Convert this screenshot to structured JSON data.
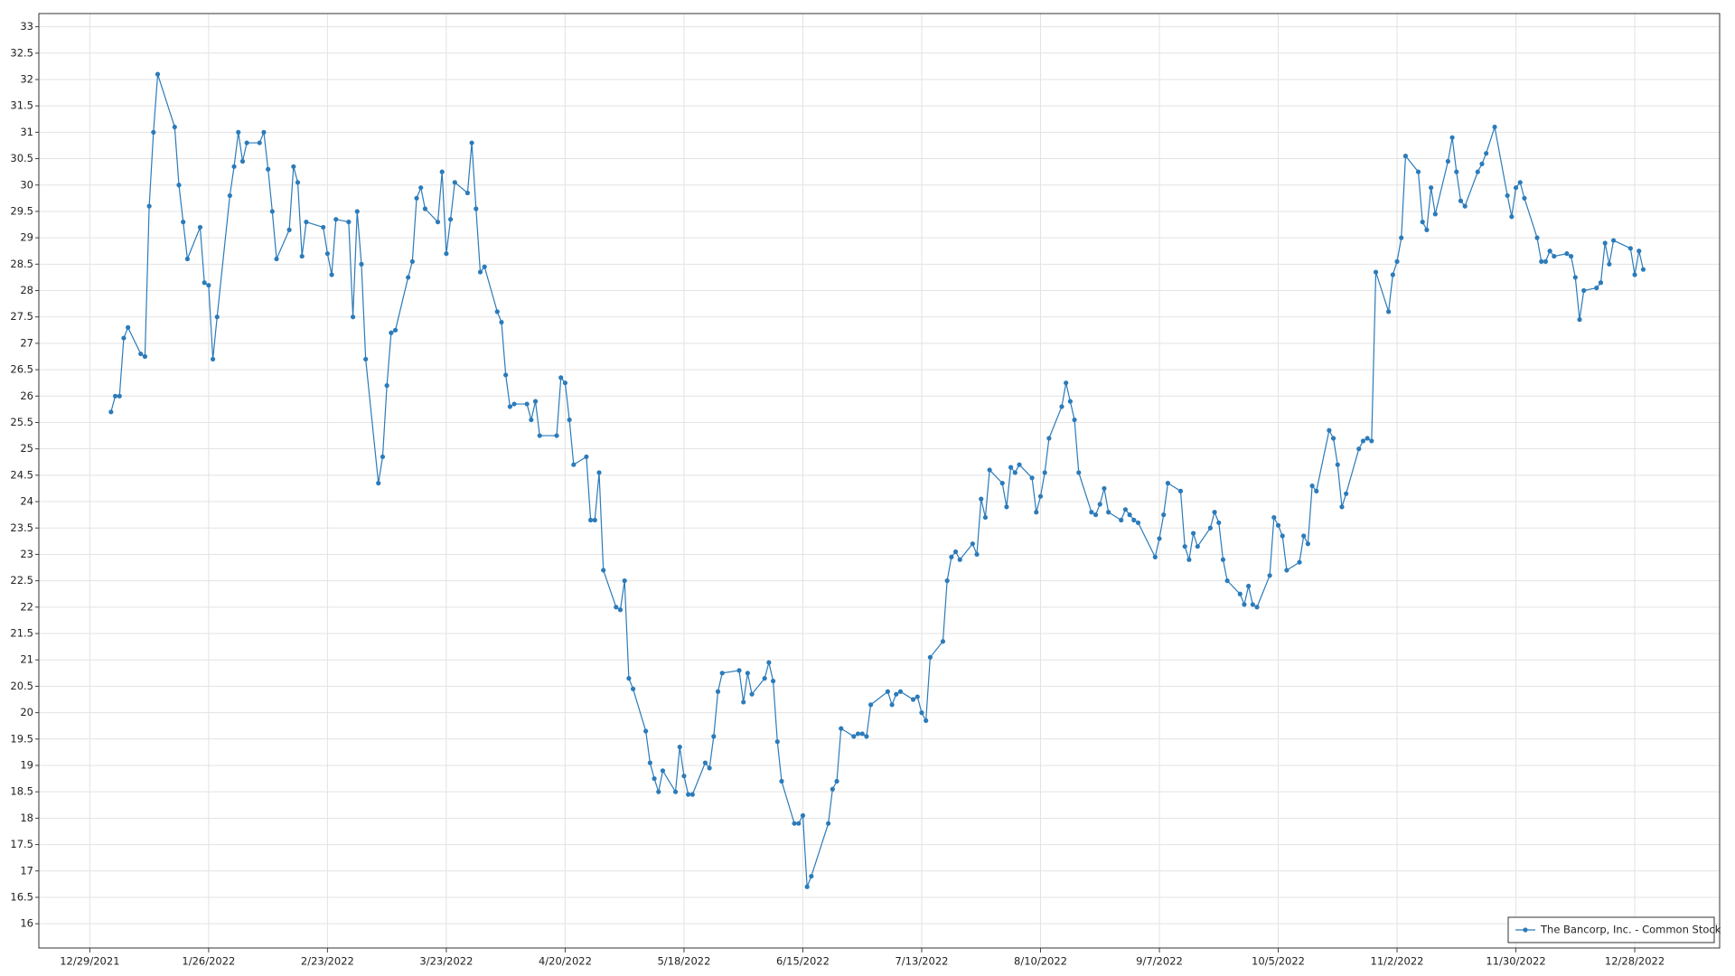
{
  "chart_data": {
    "type": "line",
    "grid": true,
    "legend": "bottom-right",
    "markers": true,
    "xlim": [
      "12/17/2021",
      "1/17/2023"
    ],
    "xticks": [
      "12/29/2021",
      "1/26/2022",
      "2/23/2022",
      "3/23/2022",
      "4/20/2022",
      "5/18/2022",
      "6/15/2022",
      "7/13/2022",
      "8/10/2022",
      "9/7/2022",
      "10/5/2022",
      "11/2/2022",
      "11/30/2022",
      "12/28/2022"
    ],
    "ylim": [
      15.54,
      33.25
    ],
    "yticks": [
      16,
      16.5,
      17,
      17.5,
      18,
      18.5,
      19,
      19.5,
      20,
      20.5,
      21,
      21.5,
      22,
      22.5,
      23,
      23.5,
      24,
      24.5,
      25,
      25.5,
      26,
      26.5,
      27,
      27.5,
      28,
      28.5,
      29,
      29.5,
      30,
      30.5,
      31,
      31.5,
      32,
      32.5,
      33
    ],
    "x": [
      "1/3/2022",
      "1/4/2022",
      "1/5/2022",
      "1/6/2022",
      "1/7/2022",
      "1/10/2022",
      "1/11/2022",
      "1/12/2022",
      "1/13/2022",
      "1/14/2022",
      "1/18/2022",
      "1/19/2022",
      "1/20/2022",
      "1/21/2022",
      "1/24/2022",
      "1/25/2022",
      "1/26/2022",
      "1/27/2022",
      "1/28/2022",
      "1/31/2022",
      "2/1/2022",
      "2/2/2022",
      "2/3/2022",
      "2/4/2022",
      "2/7/2022",
      "2/8/2022",
      "2/9/2022",
      "2/10/2022",
      "2/11/2022",
      "2/14/2022",
      "2/15/2022",
      "2/16/2022",
      "2/17/2022",
      "2/18/2022",
      "2/22/2022",
      "2/23/2022",
      "2/24/2022",
      "2/25/2022",
      "2/28/2022",
      "3/1/2022",
      "3/2/2022",
      "3/3/2022",
      "3/4/2022",
      "3/7/2022",
      "3/8/2022",
      "3/9/2022",
      "3/10/2022",
      "3/11/2022",
      "3/14/2022",
      "3/15/2022",
      "3/16/2022",
      "3/17/2022",
      "3/18/2022",
      "3/21/2022",
      "3/22/2022",
      "3/23/2022",
      "3/24/2022",
      "3/25/2022",
      "3/28/2022",
      "3/29/2022",
      "3/30/2022",
      "3/31/2022",
      "4/1/2022",
      "4/4/2022",
      "4/5/2022",
      "4/6/2022",
      "4/7/2022",
      "4/8/2022",
      "4/11/2022",
      "4/12/2022",
      "4/13/2022",
      "4/14/2022",
      "4/18/2022",
      "4/19/2022",
      "4/20/2022",
      "4/21/2022",
      "4/22/2022",
      "4/25/2022",
      "4/26/2022",
      "4/27/2022",
      "4/28/2022",
      "4/29/2022",
      "5/2/2022",
      "5/3/2022",
      "5/4/2022",
      "5/5/2022",
      "5/6/2022",
      "5/9/2022",
      "5/10/2022",
      "5/11/2022",
      "5/12/2022",
      "5/13/2022",
      "5/16/2022",
      "5/17/2022",
      "5/18/2022",
      "5/19/2022",
      "5/20/2022",
      "5/23/2022",
      "5/24/2022",
      "5/25/2022",
      "5/26/2022",
      "5/27/2022",
      "5/31/2022",
      "6/1/2022",
      "6/2/2022",
      "6/3/2022",
      "6/6/2022",
      "6/7/2022",
      "6/8/2022",
      "6/9/2022",
      "6/10/2022",
      "6/13/2022",
      "6/14/2022",
      "6/15/2022",
      "6/16/2022",
      "6/17/2022",
      "6/21/2022",
      "6/22/2022",
      "6/23/2022",
      "6/24/2022",
      "6/27/2022",
      "6/28/2022",
      "6/29/2022",
      "6/30/2022",
      "7/1/2022",
      "7/5/2022",
      "7/6/2022",
      "7/7/2022",
      "7/8/2022",
      "7/11/2022",
      "7/12/2022",
      "7/13/2022",
      "7/14/2022",
      "7/15/2022",
      "7/18/2022",
      "7/19/2022",
      "7/20/2022",
      "7/21/2022",
      "7/22/2022",
      "7/25/2022",
      "7/26/2022",
      "7/27/2022",
      "7/28/2022",
      "7/29/2022",
      "8/1/2022",
      "8/2/2022",
      "8/3/2022",
      "8/4/2022",
      "8/5/2022",
      "8/8/2022",
      "8/9/2022",
      "8/10/2022",
      "8/11/2022",
      "8/12/2022",
      "8/15/2022",
      "8/16/2022",
      "8/17/2022",
      "8/18/2022",
      "8/19/2022",
      "8/22/2022",
      "8/23/2022",
      "8/24/2022",
      "8/25/2022",
      "8/26/2022",
      "8/29/2022",
      "8/30/2022",
      "8/31/2022",
      "9/1/2022",
      "9/2/2022",
      "9/6/2022",
      "9/7/2022",
      "9/8/2022",
      "9/9/2022",
      "9/12/2022",
      "9/13/2022",
      "9/14/2022",
      "9/15/2022",
      "9/16/2022",
      "9/19/2022",
      "9/20/2022",
      "9/21/2022",
      "9/22/2022",
      "9/23/2022",
      "9/26/2022",
      "9/27/2022",
      "9/28/2022",
      "9/29/2022",
      "9/30/2022",
      "10/3/2022",
      "10/4/2022",
      "10/5/2022",
      "10/6/2022",
      "10/7/2022",
      "10/10/2022",
      "10/11/2022",
      "10/12/2022",
      "10/13/2022",
      "10/14/2022",
      "10/17/2022",
      "10/18/2022",
      "10/19/2022",
      "10/20/2022",
      "10/21/2022",
      "10/24/2022",
      "10/25/2022",
      "10/26/2022",
      "10/27/2022",
      "10/28/2022",
      "10/31/2022",
      "11/1/2022",
      "11/2/2022",
      "11/3/2022",
      "11/4/2022",
      "11/7/2022",
      "11/8/2022",
      "11/9/2022",
      "11/10/2022",
      "11/11/2022",
      "11/14/2022",
      "11/15/2022",
      "11/16/2022",
      "11/17/2022",
      "11/18/2022",
      "11/21/2022",
      "11/22/2022",
      "11/23/2022",
      "11/25/2022",
      "11/28/2022",
      "11/29/2022",
      "11/30/2022",
      "12/1/2022",
      "12/2/2022",
      "12/5/2022",
      "12/6/2022",
      "12/7/2022",
      "12/8/2022",
      "12/9/2022",
      "12/12/2022",
      "12/13/2022",
      "12/14/2022",
      "12/15/2022",
      "12/16/2022",
      "12/19/2022",
      "12/20/2022",
      "12/21/2022",
      "12/22/2022",
      "12/23/2022",
      "12/27/2022",
      "12/28/2022",
      "12/29/2022",
      "12/30/2022"
    ],
    "series": [
      {
        "name": "The Bancorp, Inc. - Common Stock",
        "color": "#2b7bba",
        "values": [
          25.7,
          26.0,
          26.0,
          27.1,
          27.3,
          26.8,
          26.75,
          29.6,
          31.0,
          32.1,
          31.1,
          30.0,
          29.3,
          28.6,
          29.2,
          28.15,
          28.1,
          26.7,
          27.5,
          29.8,
          30.35,
          31.0,
          30.45,
          30.8,
          30.8,
          31.0,
          30.3,
          29.5,
          28.6,
          29.15,
          30.35,
          30.05,
          28.65,
          29.3,
          29.2,
          28.7,
          28.3,
          29.35,
          29.3,
          27.5,
          29.5,
          28.5,
          26.7,
          24.35,
          24.85,
          26.2,
          27.2,
          27.25,
          28.25,
          28.55,
          29.75,
          29.95,
          29.55,
          29.3,
          30.25,
          28.7,
          29.35,
          30.05,
          29.85,
          30.8,
          29.55,
          28.35,
          28.45,
          27.6,
          27.4,
          26.4,
          25.8,
          25.85,
          25.85,
          25.55,
          25.9,
          25.25,
          25.25,
          26.35,
          26.25,
          25.55,
          24.7,
          24.85,
          23.65,
          23.65,
          24.55,
          22.7,
          22.0,
          21.95,
          22.5,
          20.65,
          20.45,
          19.65,
          19.05,
          18.75,
          18.5,
          18.9,
          18.5,
          19.35,
          18.8,
          18.45,
          18.45,
          19.05,
          18.95,
          19.55,
          20.4,
          20.75,
          20.8,
          20.2,
          20.75,
          20.35,
          20.65,
          20.95,
          20.6,
          19.45,
          18.7,
          17.9,
          17.9,
          18.05,
          16.7,
          16.9,
          17.9,
          18.55,
          18.7,
          19.7,
          19.55,
          19.6,
          19.6,
          19.55,
          20.15,
          20.4,
          20.15,
          20.35,
          20.4,
          20.25,
          20.3,
          20.0,
          19.85,
          21.05,
          21.35,
          22.5,
          22.95,
          23.05,
          22.9,
          23.2,
          23.0,
          24.05,
          23.7,
          24.6,
          24.35,
          23.9,
          24.65,
          24.55,
          24.7,
          24.45,
          23.8,
          24.1,
          24.55,
          25.2,
          25.8,
          26.25,
          25.9,
          25.55,
          24.55,
          23.8,
          23.75,
          23.95,
          24.25,
          23.8,
          23.65,
          23.85,
          23.75,
          23.65,
          23.6,
          22.95,
          23.3,
          23.75,
          24.35,
          24.2,
          23.15,
          22.9,
          23.4,
          23.15,
          23.5,
          23.8,
          23.6,
          22.9,
          22.5,
          22.25,
          22.05,
          22.4,
          22.05,
          22.0,
          22.6,
          23.7,
          23.55,
          23.35,
          22.7,
          22.85,
          23.35,
          23.2,
          24.3,
          24.2,
          25.35,
          25.2,
          24.7,
          23.9,
          24.15,
          25.0,
          25.15,
          25.2,
          25.15,
          28.35,
          27.6,
          28.3,
          28.55,
          29.0,
          30.55,
          30.25,
          29.3,
          29.15,
          29.95,
          29.45,
          30.45,
          30.9,
          30.25,
          29.7,
          29.6,
          30.25,
          30.4,
          30.6,
          31.1,
          29.8,
          29.4,
          29.95,
          30.05,
          29.75,
          29.0,
          28.55,
          28.55,
          28.75,
          28.65,
          28.7,
          28.65,
          28.25,
          27.45,
          28.0,
          28.05,
          28.15,
          28.9,
          28.5,
          28.95,
          28.8,
          28.3,
          28.75,
          28.4
        ]
      }
    ]
  }
}
